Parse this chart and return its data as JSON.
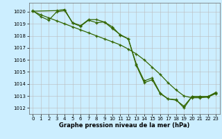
{
  "title": "",
  "xlabel": "Graphe pression niveau de la mer (hPa)",
  "ylabel": "",
  "bg_color": "#cceeff",
  "grid_color": "#bbbbbb",
  "line_color": "#336600",
  "xlim": [
    -0.5,
    23.5
  ],
  "ylim": [
    1011.5,
    1020.75
  ],
  "yticks": [
    1012,
    1013,
    1014,
    1015,
    1016,
    1017,
    1018,
    1019,
    1020
  ],
  "xticks": [
    0,
    1,
    2,
    3,
    4,
    5,
    6,
    7,
    8,
    9,
    10,
    11,
    12,
    13,
    14,
    15,
    16,
    17,
    18,
    19,
    20,
    21,
    22,
    23
  ],
  "series": [
    {
      "x": [
        0,
        1,
        2,
        3,
        4,
        5,
        6,
        7,
        8,
        9,
        10,
        11,
        12,
        13,
        14,
        15,
        16,
        17,
        18,
        19,
        20,
        21,
        22,
        23
      ],
      "y": [
        1020.1,
        1019.6,
        1019.3,
        1020.0,
        1020.1,
        1019.1,
        1018.85,
        1019.35,
        1019.35,
        1019.15,
        1018.6,
        1018.1,
        1017.75,
        1015.65,
        1014.25,
        1014.5,
        1013.25,
        1012.75,
        1012.65,
        1012.15,
        1012.95,
        1012.95,
        1012.95,
        1013.25
      ]
    },
    {
      "x": [
        0,
        1,
        2,
        3,
        4,
        5,
        6,
        7,
        8,
        9,
        10,
        11,
        12,
        13,
        14,
        15,
        16,
        17,
        18,
        19,
        20,
        21,
        22,
        23
      ],
      "y": [
        1020.05,
        1019.75,
        1019.5,
        1019.25,
        1019.0,
        1018.75,
        1018.5,
        1018.25,
        1018.0,
        1017.75,
        1017.5,
        1017.25,
        1016.9,
        1016.5,
        1016.0,
        1015.4,
        1014.8,
        1014.1,
        1013.5,
        1013.0,
        1012.85,
        1012.85,
        1012.9,
        1013.2
      ]
    },
    {
      "x": [
        0,
        3,
        4,
        5,
        6,
        7,
        8,
        9,
        10,
        11,
        12,
        13,
        14,
        15,
        16,
        17,
        18,
        19,
        20,
        21,
        22,
        23
      ],
      "y": [
        1020.05,
        1020.1,
        1020.2,
        1019.05,
        1018.8,
        1019.3,
        1019.1,
        1019.15,
        1018.75,
        1018.05,
        1017.75,
        1015.55,
        1014.1,
        1014.35,
        1013.2,
        1012.75,
        1012.7,
        1012.0,
        1012.95,
        1012.95,
        1012.95,
        1013.3
      ]
    }
  ]
}
